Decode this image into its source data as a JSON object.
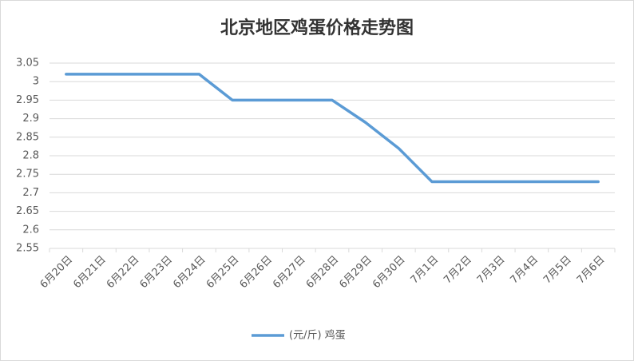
{
  "chart_data": {
    "type": "line",
    "title": "北京地区鸡蛋价格走势图",
    "categories": [
      "6月20日",
      "6月21日",
      "6月22日",
      "6月23日",
      "6月24日",
      "6月25日",
      "6月26日",
      "6月27日",
      "6月28日",
      "6月29日",
      "6月30日",
      "7月1日",
      "7月2日",
      "7月3日",
      "7月4日",
      "7月5日",
      "7月6日"
    ],
    "series": [
      {
        "name": "(元/斤) 鸡蛋",
        "color": "#5b9bd5",
        "values": [
          3.02,
          3.02,
          3.02,
          3.02,
          3.02,
          2.95,
          2.95,
          2.95,
          2.95,
          2.89,
          2.82,
          2.73,
          2.73,
          2.73,
          2.73,
          2.73,
          2.73
        ]
      }
    ],
    "ylim": [
      2.55,
      3.05
    ],
    "yticks": [
      2.55,
      2.6,
      2.65,
      2.7,
      2.75,
      2.8,
      2.85,
      2.9,
      2.95,
      3,
      3.05
    ],
    "grid": true,
    "legend": "bottom"
  }
}
